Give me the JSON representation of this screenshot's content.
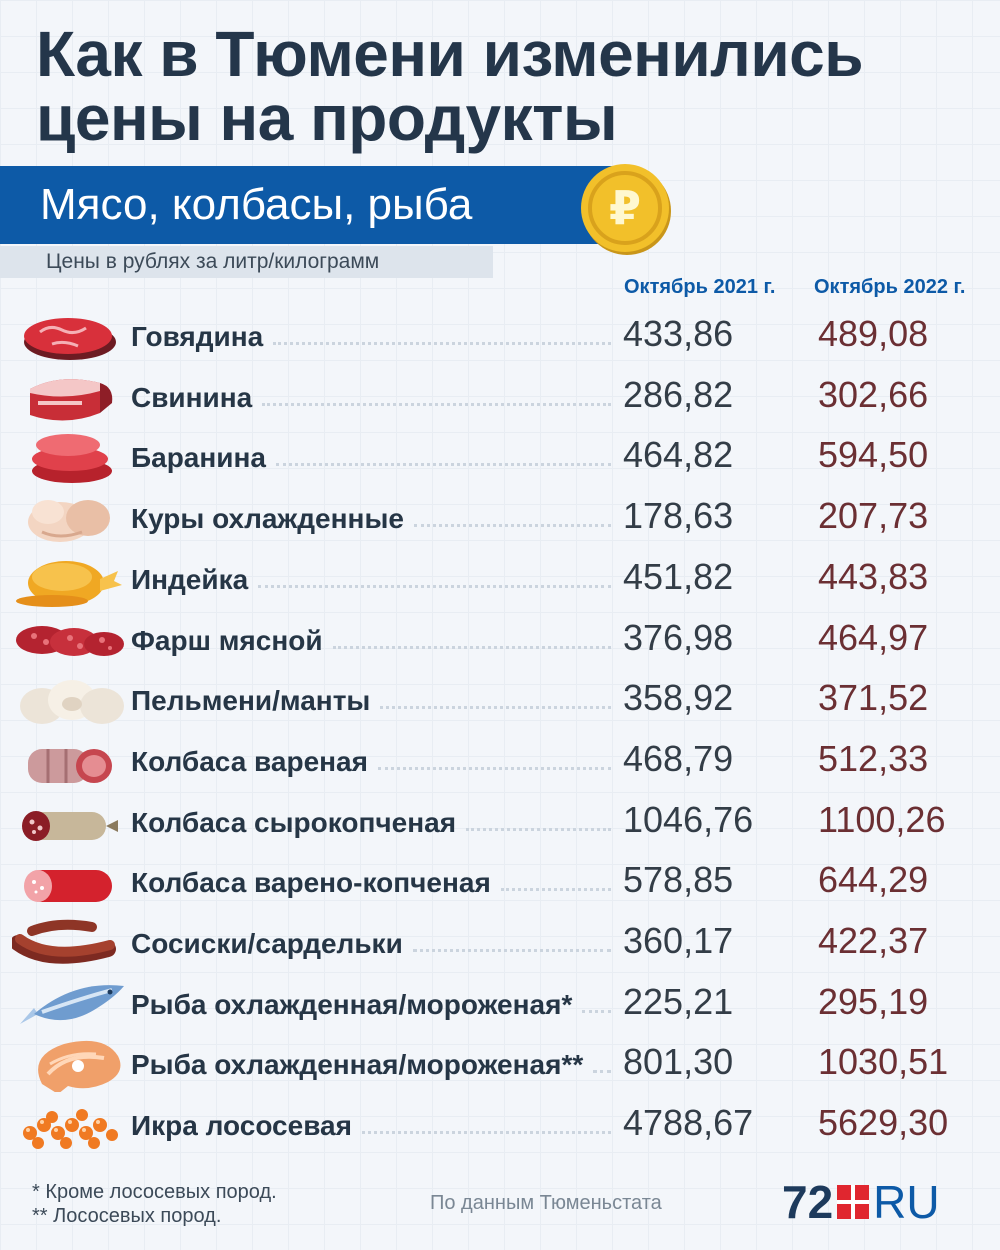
{
  "title": [
    "Как в Тюмени изменились",
    "цены на продукты"
  ],
  "banner": "Мясо, колбасы, рыба",
  "subtitle": "Цены в рублях за литр/килограмм",
  "columns": [
    "Октябрь 2021 г.",
    "Октябрь 2022 г."
  ],
  "rows": [
    {
      "label": "Говядина",
      "icon": "beef-icon",
      "v2021": "433,86",
      "v2022": "489,08"
    },
    {
      "label": "Свинина",
      "icon": "pork-icon",
      "v2021": "286,82",
      "v2022": "302,66"
    },
    {
      "label": "Баранина",
      "icon": "lamb-icon",
      "v2021": "464,82",
      "v2022": "594,50"
    },
    {
      "label": "Куры охлажденные",
      "icon": "chicken-icon",
      "v2021": "178,63",
      "v2022": "207,73"
    },
    {
      "label": "Индейка",
      "icon": "turkey-icon",
      "v2021": "451,82",
      "v2022": "443,83"
    },
    {
      "label": "Фарш мясной",
      "icon": "minced-meat-icon",
      "v2021": "376,98",
      "v2022": "464,97"
    },
    {
      "label": "Пельмени/манты",
      "icon": "dumplings-icon",
      "v2021": "358,92",
      "v2022": "371,52"
    },
    {
      "label": "Колбаса вареная",
      "icon": "boiled-sausage-icon",
      "v2021": "468,79",
      "v2022": "512,33"
    },
    {
      "label": "Колбаса сырокопченая",
      "icon": "dry-sausage-icon",
      "v2021": "1046,76",
      "v2022": "1100,26"
    },
    {
      "label": "Колбаса варено-копченая",
      "icon": "smoked-sausage-icon",
      "v2021": "578,85",
      "v2022": "644,29"
    },
    {
      "label": "Сосиски/сардельки",
      "icon": "hotdogs-icon",
      "v2021": "360,17",
      "v2022": "422,37"
    },
    {
      "label": "Рыба охлажденная/мороженая*",
      "icon": "fish-icon",
      "v2021": "225,21",
      "v2022": "295,19"
    },
    {
      "label": "Рыба охлажденная/мороженая**",
      "icon": "salmon-steak-icon",
      "v2021": "801,30",
      "v2022": "1030,51"
    },
    {
      "label": "Икра лососевая",
      "icon": "caviar-icon",
      "v2021": "4788,67",
      "v2022": "5629,30"
    }
  ],
  "footnotes": [
    "* Кроме лососевых пород.",
    "** Лососевых пород."
  ],
  "source": "По данным Тюменьстата",
  "logo": {
    "number": "72",
    "suffix": "RU"
  },
  "colors": {
    "accent": "#0d5aa7",
    "coin": "#f2c02a",
    "logo_square": "#e0262f",
    "value_2022": "#6b2f33"
  }
}
